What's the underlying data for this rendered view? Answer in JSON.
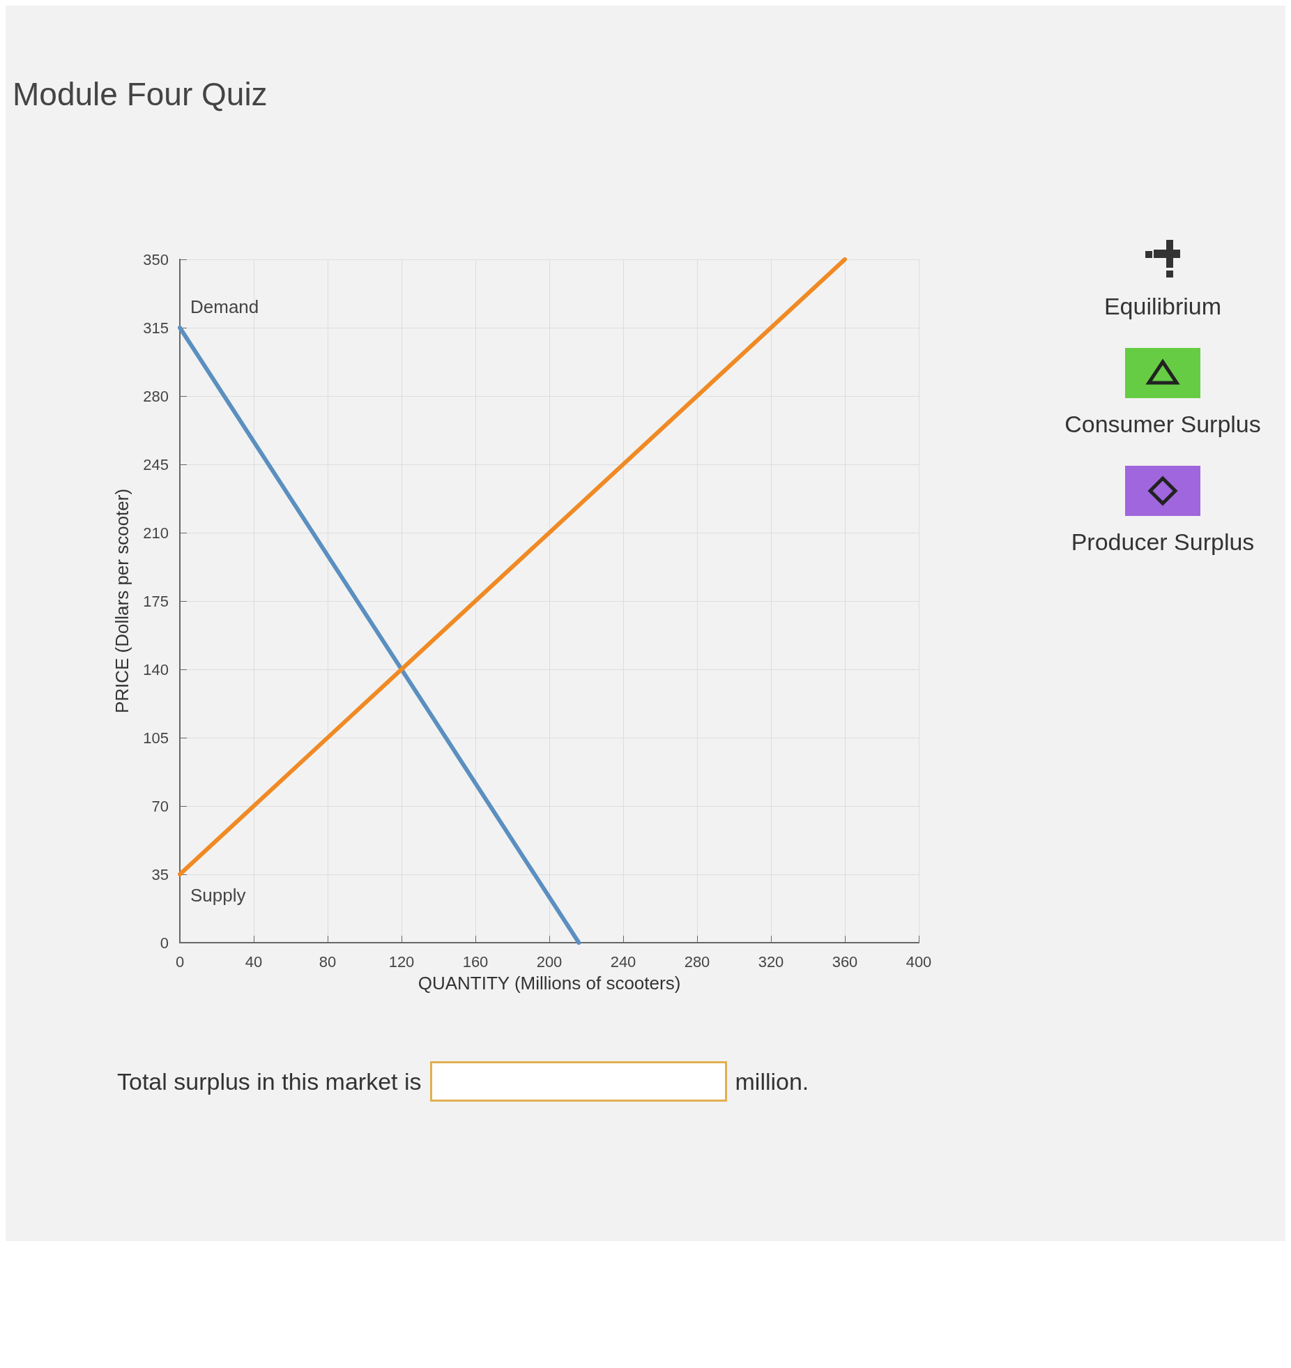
{
  "chart_data": {
    "type": "line",
    "title": "Module Four Quiz",
    "xlabel": "QUANTITY (Millions of scooters)",
    "ylabel": "PRICE (Dollars per scooter)",
    "xlim": [
      0,
      400
    ],
    "xticks": [
      0,
      40,
      80,
      120,
      160,
      200,
      240,
      280,
      320,
      360,
      400
    ],
    "ylim": [
      0,
      350
    ],
    "yticks": [
      0,
      35,
      70,
      105,
      140,
      175,
      210,
      245,
      280,
      315,
      350
    ],
    "grid": true,
    "marker": "none",
    "series": [
      {
        "name": "Demand",
        "color": "#5b8fc0",
        "x": [
          0,
          216
        ],
        "values": [
          315,
          0
        ]
      },
      {
        "name": "Supply",
        "color": "#f08a24",
        "x": [
          0,
          360
        ],
        "values": [
          35,
          350
        ]
      }
    ],
    "annotations": [
      "Equilibrium",
      "Consumer Surplus",
      "Producer Surplus",
      "Total surplus in this market is",
      "million."
    ]
  }
}
